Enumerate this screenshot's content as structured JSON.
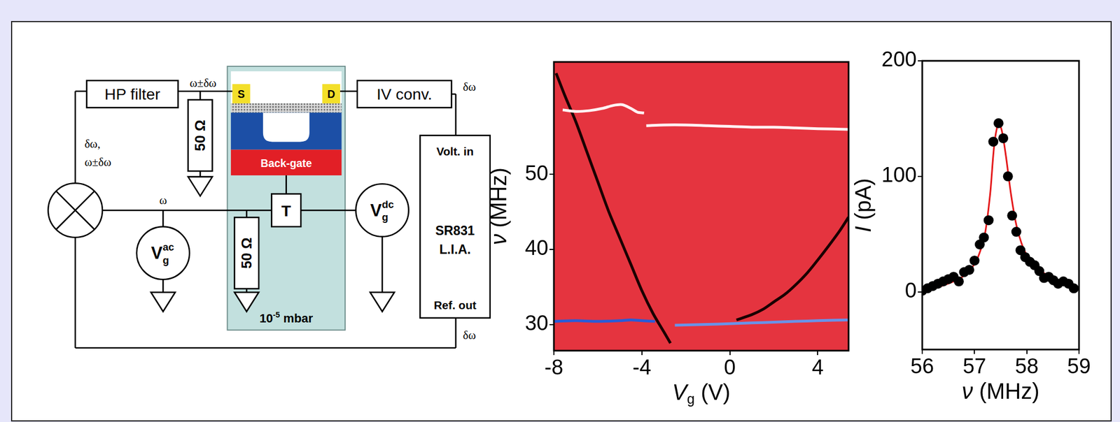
{
  "diagram": {
    "hp_filter": "HP filter",
    "iv_converter": "IV conv.",
    "source": "S",
    "drain": "D",
    "back_gate": "Back-gate",
    "tee": "T",
    "resistors": [
      "50 Ω",
      "50 Ω"
    ],
    "pressure": {
      "main": "10",
      "sup": "-5",
      "rest": " mbar"
    },
    "lock_in": {
      "lines": [
        "SR831",
        "L.I.A."
      ],
      "input": "Volt. in",
      "output": "Ref. out"
    },
    "sources": [
      {
        "main": "V",
        "sub": "g",
        "sup": "ac"
      },
      {
        "main": "V",
        "sub": "g",
        "sup": "dc"
      }
    ],
    "signals": {
      "to_source": "ω±δω",
      "from_drain": "δω",
      "mixer_out": [
        "δω,",
        "ω±δω"
      ],
      "gate_ac": "ω",
      "reference": "δω"
    }
  },
  "chart_data": [
    {
      "type": "line",
      "x_label": {
        "main": "V",
        "sub": "g",
        "rest": " (V)"
      },
      "y_label": {
        "main": "ν",
        "rest": " (MHz)"
      },
      "xlim": [
        -8,
        5.4
      ],
      "xticks": [
        -8,
        -4,
        0,
        4
      ],
      "ylim": [
        26.5,
        65
      ],
      "yticks": [
        30,
        40,
        50
      ],
      "grid": false,
      "series": [
        {
          "type": "line",
          "marker": "none",
          "color": "#fff2f3",
          "x": [
            -7.6,
            -7,
            -6.4,
            -5.8,
            -5.3,
            -4.9,
            -4.5,
            -4.2,
            -3.9
          ],
          "values": [
            58.6,
            58.4,
            58.5,
            58.8,
            59.2,
            59.3,
            58.8,
            58.3,
            58.2
          ]
        },
        {
          "type": "line",
          "marker": "none",
          "color": "#fff2f3",
          "x": [
            -3.8,
            -3,
            -2,
            -1,
            0,
            1,
            2,
            3,
            4,
            5.4
          ],
          "values": [
            56.5,
            56.6,
            56.6,
            56.5,
            56.4,
            56.3,
            56.3,
            56.2,
            56.1,
            56.0
          ]
        },
        {
          "type": "line",
          "marker": "none",
          "color": "#2a5bd7",
          "x": [
            -8,
            -7,
            -6,
            -5,
            -4.5,
            -4,
            -3.4
          ],
          "values": [
            30.4,
            30.5,
            30.4,
            30.5,
            30.6,
            30.5,
            30.4
          ]
        },
        {
          "type": "line",
          "marker": "none",
          "color": "#6a92e8",
          "x": [
            -2.5,
            -1,
            0,
            1,
            2,
            3,
            4,
            5.4
          ],
          "values": [
            29.9,
            30.0,
            30.1,
            30.2,
            30.3,
            30.4,
            30.5,
            30.6
          ]
        },
        {
          "type": "line",
          "marker": "none",
          "color": "#1a0000",
          "x": [
            -7.9,
            -7.5,
            -7,
            -6.5,
            -6,
            -5.5,
            -5,
            -4.5,
            -4,
            -3.5,
            -3,
            -2.7
          ],
          "values": [
            63.5,
            60.5,
            57,
            53,
            49,
            45,
            41.5,
            38,
            34.5,
            31.5,
            29,
            27.5
          ]
        },
        {
          "type": "line",
          "marker": "none",
          "color": "#1a0000",
          "x": [
            0.3,
            1,
            1.5,
            2,
            2.5,
            3,
            3.5,
            4,
            4.5,
            5,
            5.4
          ],
          "values": [
            30.6,
            31.3,
            32,
            33,
            34,
            35.3,
            36.8,
            38.6,
            40.5,
            42.5,
            44.3
          ]
        }
      ]
    },
    {
      "type": "scatter",
      "x_label": {
        "main": "ν",
        "rest": " (MHz)"
      },
      "y_label": {
        "main": "I",
        "rest": " (pA)"
      },
      "xlim": [
        56,
        59
      ],
      "xticks": [
        56,
        57,
        58,
        59
      ],
      "ylim": [
        -50,
        200
      ],
      "yticks": [
        0,
        100,
        200
      ],
      "grid": false,
      "series": [
        {
          "type": "scatter",
          "marker": "circle",
          "color": "#000000",
          "x": [
            56.0,
            56.1,
            56.2,
            56.3,
            56.4,
            56.5,
            56.6,
            56.7,
            56.8,
            56.9,
            57.0,
            57.1,
            57.18,
            57.27,
            57.36,
            57.46,
            57.55,
            57.64,
            57.72,
            57.8,
            57.88,
            57.97,
            58.06,
            58.15,
            58.24,
            58.33,
            58.42,
            58.51,
            58.6,
            58.7,
            58.8,
            58.9
          ],
          "values": [
            1,
            3,
            5,
            7,
            9,
            11,
            13,
            9,
            17,
            19,
            27,
            41,
            47,
            62,
            130,
            146,
            133,
            100,
            66,
            52,
            36,
            30,
            26,
            23,
            18,
            12,
            13,
            10,
            7,
            9,
            7,
            3
          ]
        },
        {
          "type": "line",
          "marker": "none",
          "line_style": "solid",
          "color": "#e41a1c",
          "x": [
            56,
            56.3,
            56.6,
            56.8,
            57,
            57.1,
            57.2,
            57.3,
            57.38,
            57.46,
            57.52,
            57.6,
            57.7,
            57.8,
            57.9,
            58,
            58.2,
            58.4,
            58.6,
            58.8,
            59
          ],
          "values": [
            0,
            4,
            9,
            14,
            24,
            34,
            50,
            85,
            128,
            146,
            140,
            118,
            84,
            58,
            42,
            32,
            21,
            14,
            9,
            6,
            3
          ]
        }
      ]
    }
  ]
}
